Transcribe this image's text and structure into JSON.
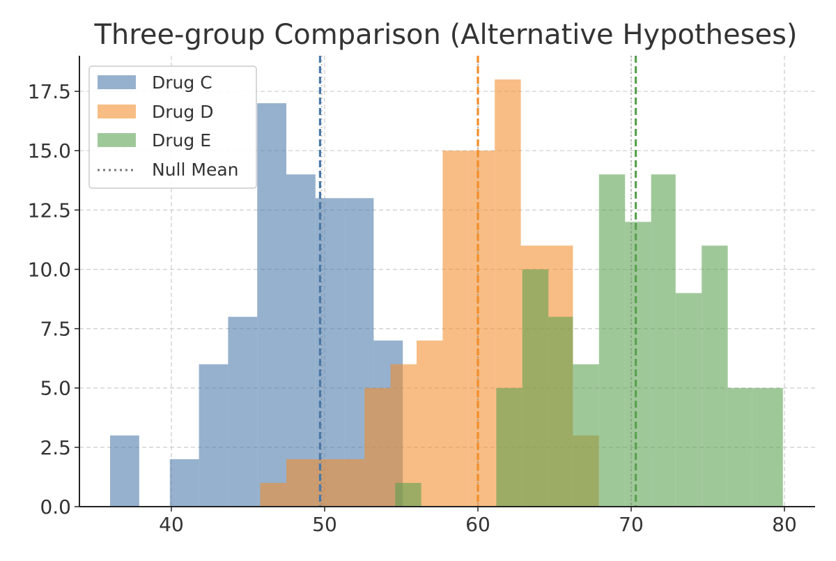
{
  "chart_data": {
    "type": "histogram",
    "title": "Three-group Comparison (Alternative Hypotheses)",
    "xlabel": "",
    "ylabel": "",
    "xlim": [
      34,
      82
    ],
    "ylim": [
      0,
      19
    ],
    "x_ticks": [
      40,
      50,
      60,
      70,
      80
    ],
    "x_tick_labels": [
      "40",
      "50",
      "60",
      "70",
      "80"
    ],
    "y_ticks": [
      0,
      2.5,
      5,
      7.5,
      10,
      12.5,
      15,
      17.5
    ],
    "y_tick_labels": [
      "0.0",
      "2.5",
      "5.0",
      "7.5",
      "10.0",
      "12.5",
      "15.0",
      "17.5"
    ],
    "grid": true,
    "legend_position": "upper-left",
    "null_mean_label": "Null Mean",
    "null_mean_color": "#777777",
    "series": [
      {
        "name": "Drug C",
        "color": "#4a78a8",
        "bins": [
          {
            "x0": 36.0,
            "x1": 37.9,
            "count": 3
          },
          {
            "x0": 37.9,
            "x1": 39.9,
            "count": 0
          },
          {
            "x0": 39.9,
            "x1": 41.8,
            "count": 2
          },
          {
            "x0": 41.8,
            "x1": 43.7,
            "count": 6
          },
          {
            "x0": 43.7,
            "x1": 45.6,
            "count": 8
          },
          {
            "x0": 45.6,
            "x1": 47.5,
            "count": 17
          },
          {
            "x0": 47.5,
            "x1": 49.4,
            "count": 14
          },
          {
            "x0": 49.4,
            "x1": 51.3,
            "count": 13
          },
          {
            "x0": 51.3,
            "x1": 53.2,
            "count": 13
          },
          {
            "x0": 53.2,
            "x1": 55.1,
            "count": 7
          }
        ],
        "mean": 49.7
      },
      {
        "name": "Drug D",
        "color": "#f28e2b",
        "bins": [
          {
            "x0": 45.8,
            "x1": 47.5,
            "count": 1
          },
          {
            "x0": 47.5,
            "x1": 49.2,
            "count": 2
          },
          {
            "x0": 49.2,
            "x1": 50.9,
            "count": 2
          },
          {
            "x0": 50.9,
            "x1": 52.6,
            "count": 2
          },
          {
            "x0": 52.6,
            "x1": 54.3,
            "count": 5
          },
          {
            "x0": 54.3,
            "x1": 56.0,
            "count": 6
          },
          {
            "x0": 56.0,
            "x1": 57.7,
            "count": 7
          },
          {
            "x0": 57.7,
            "x1": 59.4,
            "count": 15
          },
          {
            "x0": 59.4,
            "x1": 61.1,
            "count": 15
          },
          {
            "x0": 61.1,
            "x1": 62.8,
            "count": 18
          },
          {
            "x0": 62.8,
            "x1": 64.5,
            "count": 11
          },
          {
            "x0": 64.5,
            "x1": 66.2,
            "count": 11
          },
          {
            "x0": 66.2,
            "x1": 67.9,
            "count": 3
          }
        ],
        "mean": 60.0
      },
      {
        "name": "Drug E",
        "color": "#59a14f",
        "bins": [
          {
            "x0": 54.6,
            "x1": 56.3,
            "count": 1
          },
          {
            "x0": 56.3,
            "x1": 58.0,
            "count": 0
          },
          {
            "x0": 58.0,
            "x1": 59.6,
            "count": 0
          },
          {
            "x0": 59.6,
            "x1": 61.2,
            "count": 0
          },
          {
            "x0": 61.2,
            "x1": 62.9,
            "count": 5
          },
          {
            "x0": 62.9,
            "x1": 64.6,
            "count": 10
          },
          {
            "x0": 64.6,
            "x1": 66.2,
            "count": 8
          },
          {
            "x0": 66.2,
            "x1": 67.9,
            "count": 6
          },
          {
            "x0": 67.9,
            "x1": 69.6,
            "count": 14
          },
          {
            "x0": 69.6,
            "x1": 71.3,
            "count": 12
          },
          {
            "x0": 71.3,
            "x1": 72.9,
            "count": 14
          },
          {
            "x0": 72.9,
            "x1": 74.6,
            "count": 9
          },
          {
            "x0": 74.6,
            "x1": 76.3,
            "count": 11
          },
          {
            "x0": 76.3,
            "x1": 77.9,
            "count": 5
          },
          {
            "x0": 77.9,
            "x1": 79.9,
            "count": 5
          }
        ],
        "mean": 70.3
      }
    ],
    "null_means": [
      49.8,
      60.0,
      70.0
    ]
  }
}
